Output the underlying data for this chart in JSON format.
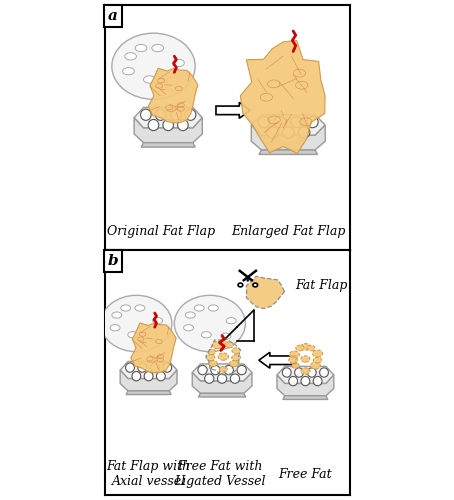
{
  "bg_color": "#ffffff",
  "fat_fill": "#f5c87a",
  "fat_edge": "#c8964a",
  "fat_vein": "#cc7733",
  "vessel_color": "#cc0000",
  "chamber_top_fill": "#f0f0f0",
  "chamber_side_fill": "#e0e0e0",
  "chamber_ledge_fill": "#cccccc",
  "chamber_edge": "#999999",
  "lid_fill": "#f5f5f5",
  "lid_edge": "#aaaaaa",
  "hole_fill": "#ffffff",
  "hole_edge": "#555555",
  "border_color": "#000000",
  "label_a": "a",
  "label_b": "b",
  "label_original": "Original Fat Flap",
  "label_enlarged": "Enlarged Fat Flap",
  "label_fat_flap_axial": "Fat Flap with\nAxial vessel",
  "label_free_fat_ligated": "Free Fat with\nLigated Vessel",
  "label_free_fat": "Free Fat",
  "label_fat_flap_cut": "Fat Flap",
  "fontsize_label": 9,
  "fontsize_panel": 11
}
